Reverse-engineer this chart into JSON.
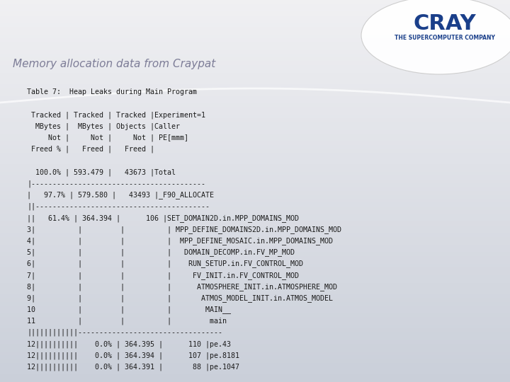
{
  "title": "Memory allocation data from Craypat",
  "bg_top_color": "#f0f0f0",
  "bg_bottom_color": "#c8ccd4",
  "text_color": "#1a1a1a",
  "title_color": "#555577",
  "title_font_size": 11,
  "content_font_size": 7.2,
  "content_lines": [
    "Table 7:  Heap Leaks during Main Program",
    "",
    " Tracked | Tracked | Tracked |Experiment=1",
    "  MBytes |  MBytes | Objects |Caller",
    "     Not |     Not |     Not | PE[mmm]",
    " Freed % |   Freed |   Freed |",
    "",
    "  100.0% | 593.479 |   43673 |Total",
    "|-----------------------------------------",
    "|   97.7% | 579.580 |   43493 |_F90_ALLOCATE",
    "||-----------------------------------------",
    "||   61.4% | 364.394 |      106 |SET_DOMAIN2D.in.MPP_DOMAINS_MOD",
    "3|          |         |          | MPP_DEFINE_DOMAINS2D.in.MPP_DOMAINS_MOD",
    "4|          |         |          |  MPP_DEFINE_MOSAIC.in.MPP_DOMAINS_MOD",
    "5|          |         |          |   DOMAIN_DECOMP.in.FV_MP_MOD",
    "6|          |         |          |    RUN_SETUP.in.FV_CONTROL_MOD",
    "7|          |         |          |     FV_INIT.in.FV_CONTROL_MOD",
    "8|          |         |          |      ATMOSPHERE_INIT.in.ATMOSPHERE_MOD",
    "9|          |         |          |       ATMOS_MODEL_INIT.in.ATMOS_MODEL",
    "10          |         |          |        MAIN__",
    "11          |         |          |         main",
    "||||||||||||----------------------------------",
    "12||||||||||    0.0% | 364.395 |      110 |pe.43",
    "12||||||||||    0.0% | 364.394 |      107 |pe.8181",
    "12||||||||||    0.0% | 364.391 |       88 |pe.1047"
  ]
}
